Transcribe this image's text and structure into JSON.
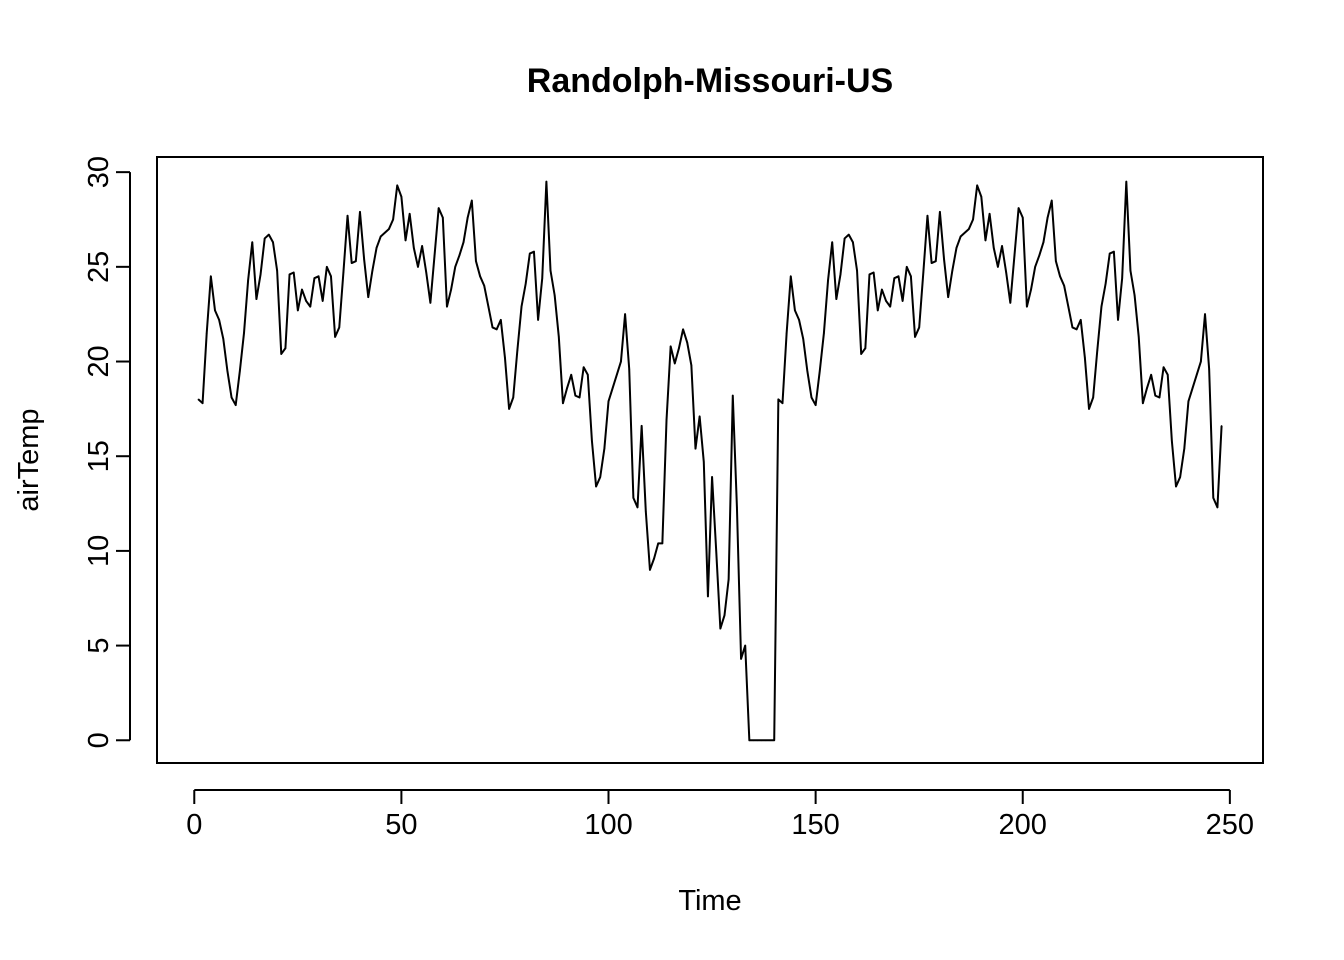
{
  "chart_data": {
    "type": "line",
    "title": "Randolph-Missouri-US",
    "xlabel": "Time",
    "ylabel": "airTemp",
    "xlim": [
      -9,
      258
    ],
    "ylim": [
      -1.2,
      30.8
    ],
    "xticks": [
      0,
      50,
      100,
      150,
      200,
      250
    ],
    "yticks": [
      0,
      5,
      10,
      15,
      20,
      25,
      30
    ],
    "grid": false,
    "legend": "none",
    "color": "#000000",
    "series": [
      {
        "x": [
          1,
          2,
          3,
          4,
          5,
          6,
          7,
          8,
          9,
          10,
          11,
          12,
          13,
          14,
          15,
          16,
          17,
          18,
          19,
          20,
          21,
          22,
          23,
          24,
          25,
          26,
          27,
          28,
          29,
          30,
          31,
          32,
          33,
          34,
          35,
          36,
          37,
          38,
          39,
          40,
          41,
          42,
          43,
          44,
          45,
          46,
          47,
          48,
          49,
          50,
          51,
          52,
          53,
          54,
          55,
          56,
          57,
          58,
          59,
          60,
          61,
          62,
          63,
          64,
          65,
          66,
          67,
          68,
          69,
          70,
          71,
          72,
          73,
          74,
          75,
          76,
          77,
          78,
          79,
          80,
          81,
          82,
          83,
          84,
          85,
          86,
          87,
          88,
          89,
          90,
          91,
          92,
          93,
          94,
          95,
          96,
          97,
          98,
          99,
          100,
          101,
          102,
          103,
          104,
          105,
          106,
          107,
          108,
          109,
          110,
          111,
          112,
          113,
          114,
          115,
          116,
          117,
          118,
          119,
          120,
          121,
          122,
          123,
          124,
          125,
          126,
          127,
          128,
          129,
          130,
          131,
          132,
          133,
          134,
          135,
          136,
          137,
          138,
          139,
          140,
          141,
          142,
          143,
          144,
          145,
          146,
          147,
          148,
          149,
          150,
          151,
          152,
          153,
          154,
          155,
          156,
          157,
          158,
          159,
          160,
          161,
          162,
          163,
          164,
          165,
          166,
          167,
          168,
          169,
          170,
          171,
          172,
          173,
          174,
          175,
          176,
          177,
          178,
          179,
          180,
          181,
          182,
          183,
          184,
          185,
          186,
          187,
          188,
          189,
          190,
          191,
          192,
          193,
          194,
          195,
          196,
          197,
          198,
          199,
          200,
          201,
          202,
          203,
          204,
          205,
          206,
          207,
          208,
          209,
          210,
          211,
          212,
          213,
          214,
          215,
          216,
          217,
          218,
          219,
          220,
          221,
          222,
          223,
          224,
          225,
          226,
          227,
          228,
          229,
          230,
          231,
          232,
          233,
          234,
          235,
          236,
          237,
          238,
          239,
          240,
          241,
          242,
          243,
          244,
          245,
          246,
          247,
          248
        ],
        "values": [
          18.0,
          17.8,
          21.5,
          24.5,
          22.7,
          22.2,
          21.2,
          19.5,
          18.1,
          17.7,
          19.5,
          21.5,
          24.3,
          26.3,
          23.3,
          24.6,
          26.5,
          26.7,
          26.3,
          24.8,
          20.4,
          20.7,
          24.6,
          24.7,
          22.7,
          23.8,
          23.2,
          22.9,
          24.4,
          24.5,
          23.2,
          25.0,
          24.5,
          21.3,
          21.8,
          24.7,
          27.7,
          25.2,
          25.3,
          27.9,
          25.4,
          23.4,
          24.8,
          26.0,
          26.6,
          26.8,
          27.0,
          27.5,
          29.3,
          28.7,
          26.4,
          27.8,
          26.0,
          25.0,
          26.1,
          24.7,
          23.1,
          25.6,
          28.1,
          27.6,
          22.9,
          23.8,
          25.0,
          25.6,
          26.3,
          27.6,
          28.5,
          25.3,
          24.5,
          24.0,
          22.9,
          21.8,
          21.7,
          22.2,
          20.2,
          17.5,
          18.1,
          20.6,
          22.9,
          24.1,
          25.7,
          25.8,
          22.2,
          24.4,
          29.5,
          24.8,
          23.5,
          21.3,
          17.8,
          18.6,
          19.3,
          18.2,
          18.1,
          19.7,
          19.3,
          15.8,
          13.4,
          13.9,
          15.4,
          17.9,
          18.6,
          19.3,
          20.0,
          22.5,
          19.6,
          12.8,
          12.3,
          16.6,
          12.1,
          9.0,
          9.6,
          10.4,
          10.4,
          16.9,
          20.8,
          19.9,
          20.7,
          21.7,
          21.0,
          19.8,
          15.4,
          17.1,
          14.7,
          7.6,
          13.9,
          10.0,
          5.9,
          6.6,
          8.5,
          18.2,
          12.3,
          4.3,
          5.0,
          0.0,
          0.0,
          0.0,
          0.0,
          0.0,
          0.0,
          0.0,
          18.0,
          17.8,
          21.5,
          24.5,
          22.7,
          22.2,
          21.2,
          19.5,
          18.1,
          17.7,
          19.5,
          21.5,
          24.3,
          26.3,
          23.3,
          24.6,
          26.5,
          26.7,
          26.3,
          24.8,
          20.4,
          20.7,
          24.6,
          24.7,
          22.7,
          23.8,
          23.2,
          22.9,
          24.4,
          24.5,
          23.2,
          25.0,
          24.5,
          21.3,
          21.8,
          24.7,
          27.7,
          25.2,
          25.3,
          27.9,
          25.4,
          23.4,
          24.8,
          26.0,
          26.6,
          26.8,
          27.0,
          27.5,
          29.3,
          28.7,
          26.4,
          27.8,
          26.0,
          25.0,
          26.1,
          24.7,
          23.1,
          25.6,
          28.1,
          27.6,
          22.9,
          23.8,
          25.0,
          25.6,
          26.3,
          27.6,
          28.5,
          25.3,
          24.5,
          24.0,
          22.9,
          21.8,
          21.7,
          22.2,
          20.2,
          17.5,
          18.1,
          20.6,
          22.9,
          24.1,
          25.7,
          25.8,
          22.2,
          24.4,
          29.5,
          24.8,
          23.5,
          21.3,
          17.8,
          18.6,
          19.3,
          18.2,
          18.1,
          19.7,
          19.3,
          15.8,
          13.4,
          13.9,
          15.4,
          17.9,
          18.6,
          19.3,
          20.0,
          22.5,
          19.6,
          12.8,
          12.3,
          16.6
        ]
      }
    ]
  }
}
